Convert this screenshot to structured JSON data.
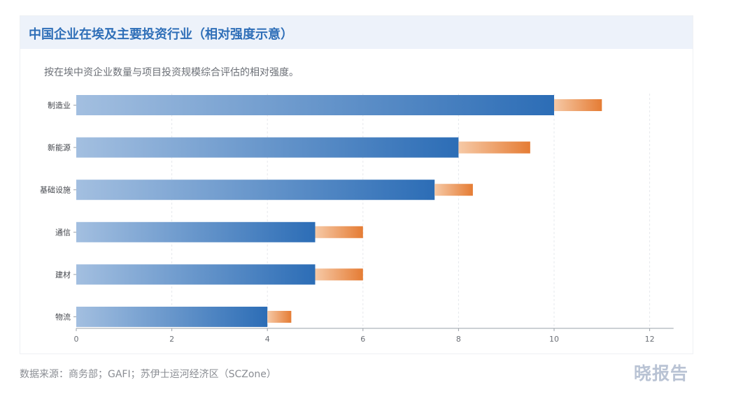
{
  "header": {
    "title": "中国企业在埃及主要投资行业（相对强度示意）",
    "subtitle": "按在埃中资企业数量与项目投资规模综合评估的相对强度。"
  },
  "footer": {
    "source": "数据来源：商务部；GAFI；苏伊士运河经济区（SCZone）",
    "logo": "晓报告"
  },
  "colors": {
    "bar_start": "#a3bfe0",
    "bar_end": "#2c6db6",
    "ext_start": "#f6c9a6",
    "ext_end": "#e57c34",
    "grid": "#e6e8ec",
    "axis": "#9aa0a8"
  },
  "chart_data": {
    "type": "bar",
    "orientation": "horizontal",
    "title": "",
    "xlabel": "",
    "ylabel": "",
    "xlim": [
      0,
      12.5
    ],
    "xticks": [
      0,
      2,
      4,
      6,
      8,
      10,
      12
    ],
    "grid": "vertical-dashed",
    "categories": [
      "制造业",
      "新能源",
      "基础设施",
      "通信",
      "建材",
      "物流"
    ],
    "series": [
      {
        "values": [
          10,
          8,
          7.5,
          5,
          5,
          4
        ]
      },
      {
        "values": [
          1,
          1.5,
          0.8,
          1,
          1,
          0.5
        ]
      }
    ],
    "stacked": true
  }
}
